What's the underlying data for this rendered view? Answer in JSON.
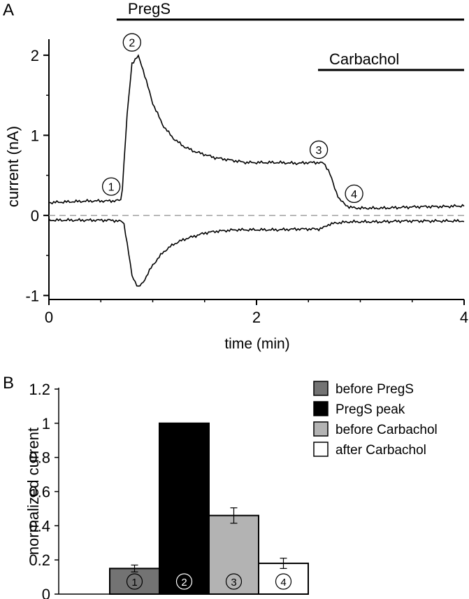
{
  "panel_a": {
    "letter": "A"
  },
  "panel_b": {
    "letter": "B"
  },
  "chart_data": [
    {
      "type": "line",
      "xlabel": "time (min)",
      "ylabel": "current (nA)",
      "xlim": [
        0,
        4
      ],
      "ylim": [
        -1.05,
        2.2
      ],
      "x_ticks": [
        "0",
        "2",
        "4"
      ],
      "y_ticks": [
        "-1",
        "0",
        "1",
        "2"
      ],
      "zero_line": {
        "y": 0,
        "style": "dashed",
        "color": "#999999"
      },
      "application_bars": [
        {
          "label": "PregS",
          "x_start": 0.72,
          "x_end": 4.0
        },
        {
          "label": "Carbachol",
          "x_start": 2.66,
          "x_end": 4.0
        }
      ],
      "markers": [
        {
          "label": "1",
          "x": 0.6,
          "y": 0.36
        },
        {
          "label": "2",
          "x": 0.8,
          "y": 2.16
        },
        {
          "label": "3",
          "x": 2.6,
          "y": 0.82
        },
        {
          "label": "4",
          "x": 2.94,
          "y": 0.27
        }
      ],
      "series": [
        {
          "color": "#000000",
          "x": [
            0,
            0.2,
            0.4,
            0.6,
            0.7,
            0.75,
            0.8,
            0.86,
            0.9,
            1.0,
            1.1,
            1.2,
            1.3,
            1.4,
            1.5,
            1.6,
            1.7,
            1.8,
            1.9,
            2.0,
            2.2,
            2.4,
            2.5,
            2.6,
            2.65,
            2.7,
            2.75,
            2.8,
            2.85,
            2.9,
            3.0,
            3.2,
            3.4,
            3.6,
            3.8,
            4.0
          ],
          "y": [
            0.16,
            0.17,
            0.18,
            0.18,
            0.19,
            1.2,
            1.9,
            1.99,
            1.85,
            1.4,
            1.12,
            0.96,
            0.86,
            0.8,
            0.76,
            0.72,
            0.7,
            0.68,
            0.66,
            0.66,
            0.66,
            0.65,
            0.66,
            0.66,
            0.65,
            0.55,
            0.35,
            0.2,
            0.14,
            0.1,
            0.09,
            0.09,
            0.1,
            0.11,
            0.11,
            0.12
          ]
        },
        {
          "color": "#000000",
          "x": [
            0,
            0.2,
            0.4,
            0.6,
            0.72,
            0.76,
            0.8,
            0.86,
            0.9,
            1.0,
            1.1,
            1.2,
            1.3,
            1.4,
            1.5,
            1.6,
            1.7,
            1.8,
            1.9,
            2.0,
            2.2,
            2.4,
            2.6,
            2.65,
            2.7,
            2.8,
            2.9,
            3.0,
            3.2,
            3.4,
            3.6,
            3.8,
            4.0
          ],
          "y": [
            -0.06,
            -0.06,
            -0.06,
            -0.06,
            -0.08,
            -0.4,
            -0.75,
            -0.9,
            -0.85,
            -0.62,
            -0.46,
            -0.36,
            -0.3,
            -0.26,
            -0.22,
            -0.2,
            -0.19,
            -0.18,
            -0.18,
            -0.18,
            -0.18,
            -0.17,
            -0.17,
            -0.15,
            -0.11,
            -0.09,
            -0.08,
            -0.08,
            -0.08,
            -0.07,
            -0.07,
            -0.07,
            -0.07
          ]
        }
      ]
    },
    {
      "type": "bar",
      "ylabel": "normalized current",
      "ylim": [
        0,
        1.2
      ],
      "y_ticks": [
        "0",
        "0.2",
        "0.4",
        "0.6",
        "0.8",
        "1",
        "1.2"
      ],
      "categories": [
        "before PregS",
        "PregS peak",
        "before Carbachol",
        "after Carbachol"
      ],
      "bar_numbers": [
        "1",
        "2",
        "3",
        "4"
      ],
      "values": [
        0.15,
        1.0,
        0.46,
        0.18
      ],
      "errors": [
        0.02,
        0,
        0.045,
        0.03
      ],
      "colors": [
        "#737373",
        "#000000",
        "#b3b3b3",
        "#ffffff"
      ],
      "legend_position": "top-right",
      "grid": false
    }
  ]
}
